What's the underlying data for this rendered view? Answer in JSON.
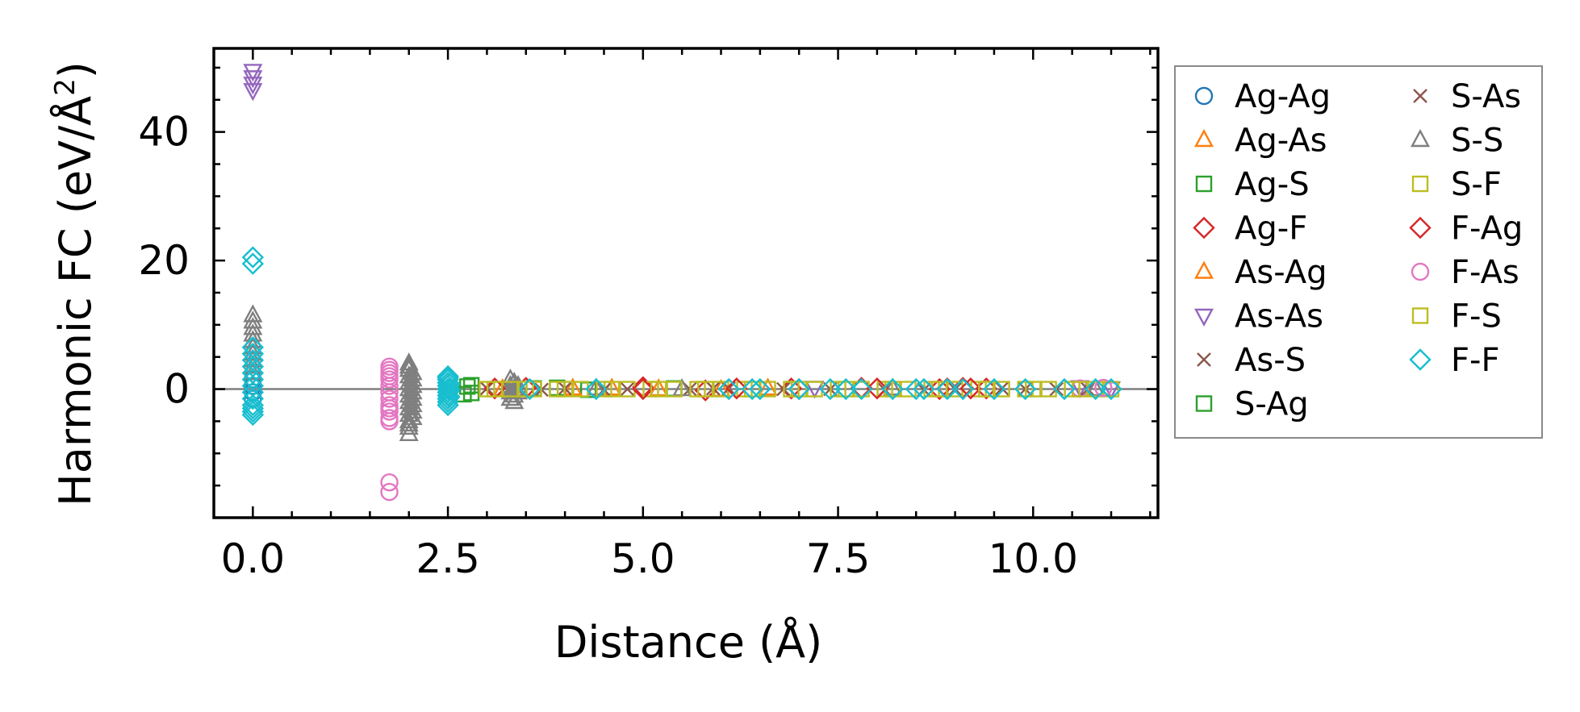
{
  "chart_data": {
    "type": "scatter",
    "title": "",
    "xlabel": "Distance (Å)",
    "ylabel": "Harmonic FC (eV/Å²)",
    "ylabel_parts": {
      "main": "Harmonic FC (eV/Å",
      "sup": "2",
      "close": ")"
    },
    "xlim": [
      -0.5,
      11.6
    ],
    "ylim": [
      -20,
      53
    ],
    "xticks": [
      0.0,
      2.5,
      5.0,
      7.5,
      10.0
    ],
    "xtick_labels": [
      "0.0",
      "2.5",
      "5.0",
      "7.5",
      "10.0"
    ],
    "xminor": [
      -0.5,
      0.5,
      1.0,
      1.5,
      2.0,
      3.0,
      3.5,
      4.0,
      4.5,
      5.5,
      6.0,
      6.5,
      7.0,
      8.0,
      8.5,
      9.0,
      9.5,
      10.5,
      11.0,
      11.5
    ],
    "yticks": [
      0,
      20,
      40
    ],
    "ytick_labels": [
      "0",
      "20",
      "40"
    ],
    "yminor": [
      -15,
      -10,
      -5,
      5,
      10,
      15,
      25,
      30,
      35,
      45,
      50
    ],
    "zero_line": 0,
    "legend_position": "outside right, upper",
    "legend_columns": 2,
    "series": [
      {
        "name": "Ag-Ag",
        "marker": "circle",
        "color": "#1f77b4",
        "x": [
          0,
          0,
          0,
          0
        ],
        "y": [
          0.5,
          -0.5,
          1.5,
          -1.5
        ]
      },
      {
        "name": "Ag-As",
        "marker": "triangle-up",
        "color": "#ff7f0e",
        "x": [
          3.2,
          4.6,
          6.0
        ],
        "y": [
          0,
          0.1,
          -0.1
        ]
      },
      {
        "name": "Ag-S",
        "marker": "square",
        "color": "#2ca02c",
        "x": [
          2.7,
          2.8,
          3.6,
          4.3,
          5.4
        ],
        "y": [
          -0.8,
          0.6,
          0.1,
          -0.1,
          0.1
        ]
      },
      {
        "name": "Ag-F",
        "marker": "diamond",
        "color": "#d62728",
        "x": [
          3.5,
          5.0,
          5.8,
          6.9,
          7.8,
          8.9,
          9.1,
          9.4
        ],
        "y": [
          0.2,
          0.3,
          -0.2,
          0.1,
          0.2,
          0.1,
          0.2,
          0.1
        ]
      },
      {
        "name": "As-Ag",
        "marker": "triangle-up",
        "color": "#ff7f0e",
        "x": [
          4.1,
          5.2,
          6.6
        ],
        "y": [
          0.1,
          0,
          0.1
        ]
      },
      {
        "name": "As-As",
        "marker": "triangle-down",
        "color": "#9467bd",
        "x": [
          0,
          0,
          0,
          0,
          7.2,
          10.6,
          11.0
        ],
        "y": [
          49.5,
          48.5,
          47.5,
          46.5,
          0.2,
          0.3,
          0.1
        ]
      },
      {
        "name": "As-S",
        "marker": "x",
        "color": "#8c564b",
        "x": [
          3.3,
          4.0,
          4.5,
          5.6,
          6.1,
          6.8,
          8.1,
          9.0,
          9.6,
          10.3,
          10.7
        ],
        "y": [
          0,
          0.1,
          -0.1,
          0,
          0.1,
          0,
          -0.1,
          0,
          0.1,
          0,
          0
        ]
      },
      {
        "name": "S-Ag",
        "marker": "square",
        "color": "#2ca02c",
        "x": [
          2.75,
          2.8,
          3.9
        ],
        "y": [
          0.4,
          -0.6,
          0.2
        ]
      },
      {
        "name": "S-As",
        "marker": "x",
        "color": "#8c564b",
        "x": [
          3.0,
          3.7,
          4.8,
          5.9,
          7.4,
          8.6,
          9.9
        ],
        "y": [
          0.1,
          -0.1,
          0,
          0.1,
          0,
          -0.1,
          0
        ]
      },
      {
        "name": "S-S",
        "marker": "triangle-up",
        "color": "#7f7f7f",
        "x": [
          0,
          0,
          0,
          0,
          0,
          0,
          0,
          0,
          0,
          0,
          2.0,
          2.0,
          2.0,
          2.0,
          2.0,
          2.0,
          2.0,
          2.0,
          2.0,
          2.0,
          2.0,
          2.0,
          2.0,
          2.0,
          2.05,
          2.05,
          2.05,
          2.05,
          2.05,
          2.05,
          2.05,
          2.05,
          3.3,
          3.3,
          3.3,
          3.3,
          3.35,
          3.35,
          3.35,
          3.35,
          3.4,
          3.4,
          4.4,
          5.5,
          8.2,
          10.8
        ],
        "y": [
          11.5,
          10.5,
          9.5,
          8.5,
          7.5,
          6.5,
          5.5,
          4.5,
          3.5,
          2.5,
          4,
          3,
          2,
          1,
          0,
          -1,
          -2,
          -3,
          -4,
          -5,
          -6,
          -7,
          3.5,
          -5.5,
          2.5,
          1.5,
          0.5,
          -0.5,
          -1.5,
          -2.5,
          -3.5,
          -4.5,
          1.5,
          0.5,
          -0.5,
          -1.5,
          1,
          0,
          -1,
          -2,
          0.5,
          -0.5,
          0.1,
          0,
          0.1,
          0
        ]
      },
      {
        "name": "S-F",
        "marker": "square",
        "color": "#bcbd22",
        "x": [
          3.0,
          3.3,
          3.6,
          3.9,
          4.2,
          4.5,
          4.8,
          5.1,
          5.4,
          5.7,
          6.0,
          6.3,
          6.6,
          6.9,
          7.2,
          7.5,
          7.8,
          8.1,
          8.4,
          8.7,
          9.0,
          9.3,
          9.6,
          9.9,
          10.2,
          10.5,
          10.8,
          11.0
        ],
        "y": [
          0,
          0,
          0,
          0,
          0,
          0,
          0,
          0,
          0,
          0,
          0,
          0,
          0,
          0,
          0,
          0,
          0,
          0,
          0,
          0,
          0,
          0,
          0,
          0,
          0,
          0,
          0,
          0
        ]
      },
      {
        "name": "F-Ag",
        "marker": "diamond",
        "color": "#d62728",
        "x": [
          3.1,
          5.0,
          6.2,
          7.0,
          8.0,
          8.8,
          9.2
        ],
        "y": [
          0.1,
          0,
          0.1,
          0,
          0.1,
          0,
          0.1
        ]
      },
      {
        "name": "F-As",
        "marker": "circle",
        "color": "#e377c2",
        "x": [
          1.75,
          1.75,
          1.75,
          1.75,
          1.75,
          1.75,
          1.75,
          1.75,
          1.75,
          1.75,
          1.75,
          1.75,
          1.75,
          1.75,
          1.75,
          10.6,
          10.9
        ],
        "y": [
          3.5,
          3,
          2.5,
          2,
          1.5,
          0.5,
          -0.5,
          -1.5,
          -2.5,
          -3,
          -3.5,
          -4.5,
          -5,
          -14.5,
          -16,
          0.1,
          0.2
        ]
      },
      {
        "name": "F-S",
        "marker": "square",
        "color": "#bcbd22",
        "x": [
          3.1,
          3.5,
          4.0,
          4.6,
          5.2,
          5.8,
          6.4,
          7.0,
          7.6,
          8.2,
          8.8,
          9.4,
          10.0,
          10.6
        ],
        "y": [
          0,
          0,
          0,
          0,
          0,
          0,
          0,
          0,
          0,
          0,
          0,
          0,
          0,
          0
        ]
      },
      {
        "name": "F-F",
        "marker": "diamond",
        "color": "#17becf",
        "x": [
          0,
          0,
          0,
          0,
          0,
          0,
          0,
          0,
          0,
          0,
          0,
          0,
          0,
          0,
          0,
          2.5,
          2.5,
          2.5,
          2.5,
          2.5,
          2.5,
          2.5,
          2.5,
          2.5,
          2.5,
          2.5,
          2.52,
          2.52,
          2.52,
          2.52,
          3.55,
          4.4,
          6.1,
          6.4,
          6.5,
          7.0,
          7.4,
          7.6,
          7.8,
          8.2,
          8.5,
          8.6,
          8.9,
          9.1,
          9.5,
          9.9,
          10.4,
          10.8,
          11.0
        ],
        "y": [
          20.5,
          19.5,
          6.5,
          5.5,
          4.5,
          3.5,
          2.5,
          1.5,
          0.5,
          -0.5,
          -1.5,
          -2.5,
          -3,
          -3.5,
          -4,
          2,
          1.5,
          1,
          0.5,
          0,
          -0.5,
          -1,
          -1.5,
          -2,
          -2.5,
          1.8,
          -1.2,
          0.8,
          -0.2,
          0,
          0,
          0,
          0,
          0,
          0,
          0,
          0,
          0,
          0,
          0,
          0,
          0,
          0,
          0,
          0,
          0,
          0,
          0,
          0
        ]
      }
    ]
  }
}
